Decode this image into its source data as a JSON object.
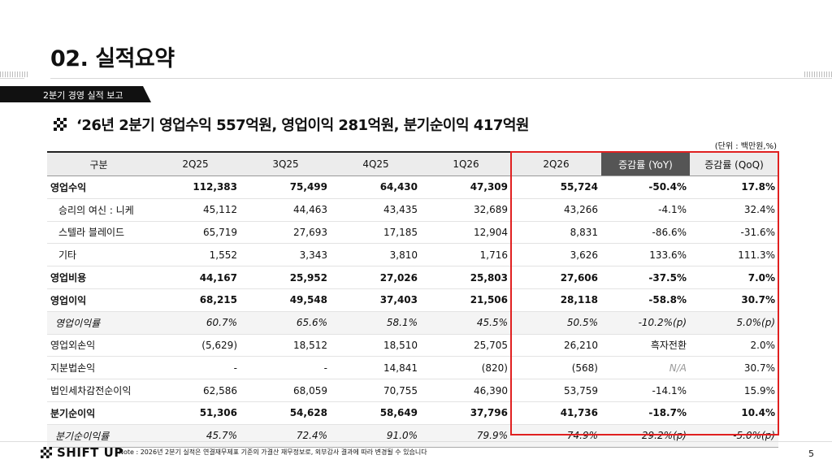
{
  "slide": {
    "title": "02. 실적요약",
    "section": "2분기 경영 실적 보고",
    "headline": "‘26년 2분기 영업수익 557억원, 영업이익 281억원, 분기순이익 417억원",
    "unit": "(단위 : 백만원,%)",
    "note": "Note : 2026년 2분기 실적은 연결재무제표 기준의 가결산 재무정보로, 외부감사 결과에 따라 변경될 수 있습니다",
    "logo": "SHIFT UP",
    "page": "5"
  },
  "table": {
    "headers": [
      "구분",
      "2Q25",
      "3Q25",
      "4Q25",
      "1Q26",
      "2Q26",
      "증감률 (YoY)",
      "증감률 (QoQ)"
    ],
    "rows": [
      {
        "cells": [
          "영업수익",
          "112,383",
          "75,499",
          "64,430",
          "47,309",
          "55,724",
          "-50.4%",
          "17.8%"
        ]
      },
      {
        "cells": [
          "승리의 여신 : 니케",
          "45,112",
          "44,463",
          "43,435",
          "32,689",
          "43,266",
          "-4.1%",
          "32.4%"
        ]
      },
      {
        "cells": [
          "스텔라 블레이드",
          "65,719",
          "27,693",
          "17,185",
          "12,904",
          "8,831",
          "-86.6%",
          "-31.6%"
        ]
      },
      {
        "cells": [
          "기타",
          "1,552",
          "3,343",
          "3,810",
          "1,716",
          "3,626",
          "133.6%",
          "111.3%"
        ]
      },
      {
        "cells": [
          "영업비용",
          "44,167",
          "25,952",
          "27,026",
          "25,803",
          "27,606",
          "-37.5%",
          "7.0%"
        ]
      },
      {
        "cells": [
          "영업이익",
          "68,215",
          "49,548",
          "37,403",
          "21,506",
          "28,118",
          "-58.8%",
          "30.7%"
        ]
      },
      {
        "cells": [
          "영업이익률",
          "60.7%",
          "65.6%",
          "58.1%",
          "45.5%",
          "50.5%",
          "-10.2%(p)",
          "5.0%(p)"
        ]
      },
      {
        "cells": [
          "영업외손익",
          "(5,629)",
          "18,512",
          "18,510",
          "25,705",
          "26,210",
          "흑자전환",
          "2.0%"
        ]
      },
      {
        "cells": [
          "지분법손익",
          "-",
          "-",
          "14,841",
          "(820)",
          "(568)",
          "N/A",
          "30.7%"
        ]
      },
      {
        "cells": [
          "법인세차감전순이익",
          "62,586",
          "68,059",
          "70,755",
          "46,390",
          "53,759",
          "-14.1%",
          "15.9%"
        ]
      },
      {
        "cells": [
          "분기순이익",
          "51,306",
          "54,628",
          "58,649",
          "37,796",
          "41,736",
          "-18.7%",
          "10.4%"
        ]
      },
      {
        "cells": [
          "분기순이익률",
          "45.7%",
          "72.4%",
          "91.0%",
          "79.9%",
          "74.9%",
          "29.2%(p)",
          "-5.0%(p)"
        ]
      }
    ]
  },
  "colors": {
    "highlight": "#e02020",
    "yoy_header": "#555555"
  }
}
